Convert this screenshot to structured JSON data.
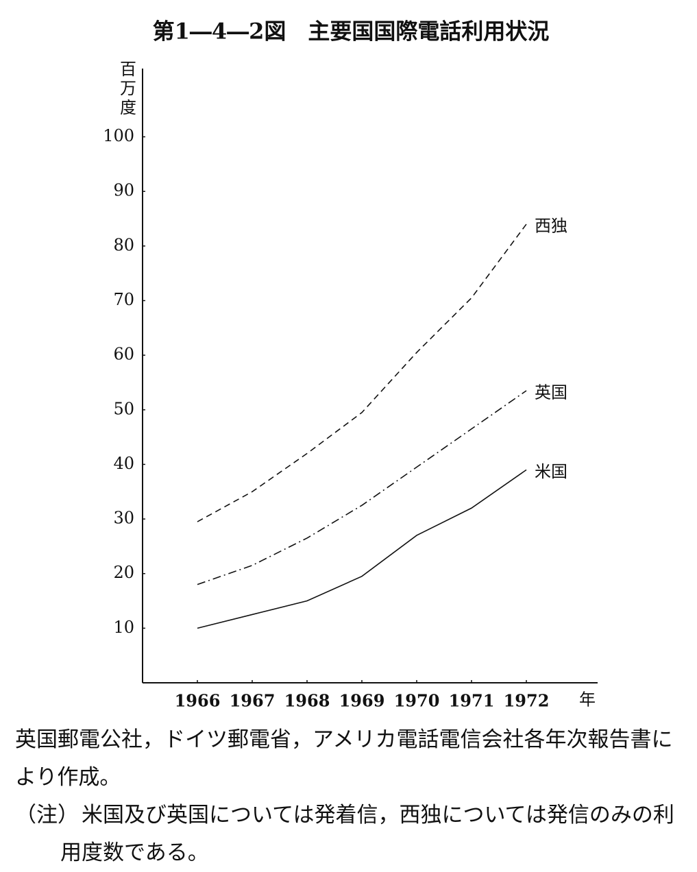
{
  "chart_data": {
    "type": "line",
    "title": "第1―4―2図　主要国国際電話利用状況",
    "ylabel": "百万度",
    "xlabel": "年",
    "x": [
      1966,
      1967,
      1968,
      1969,
      1970,
      1971,
      1972
    ],
    "xlim": [
      1965,
      1973.3
    ],
    "xticks": [
      1966,
      1967,
      1968,
      1969,
      1970,
      1971,
      1972
    ],
    "ylim": [
      0,
      112.5
    ],
    "yticks": [
      10,
      20,
      30,
      40,
      50,
      60,
      70,
      80,
      90,
      100
    ],
    "series": [
      {
        "name": "西独",
        "color": "#111111",
        "linestyle": "dashed",
        "values": [
          29.5,
          35,
          42,
          49.5,
          60.5,
          70.5,
          84
        ]
      },
      {
        "name": "英国",
        "color": "#111111",
        "linestyle": "dashdot",
        "values": [
          18,
          21.5,
          26.5,
          32.5,
          39.5,
          46.5,
          53.5
        ]
      },
      {
        "name": "米国",
        "color": "#111111",
        "linestyle": "solid",
        "values": [
          10,
          12.5,
          15,
          19.5,
          27,
          32,
          39
        ]
      }
    ],
    "source": "英国郵電公社，ドイツ郵電省，アメリカ電話電信会社各年次報告書により作成。",
    "note_label": "（注）",
    "note": "米国及び英国については発着信，西独については発信のみの利用度数である。"
  }
}
